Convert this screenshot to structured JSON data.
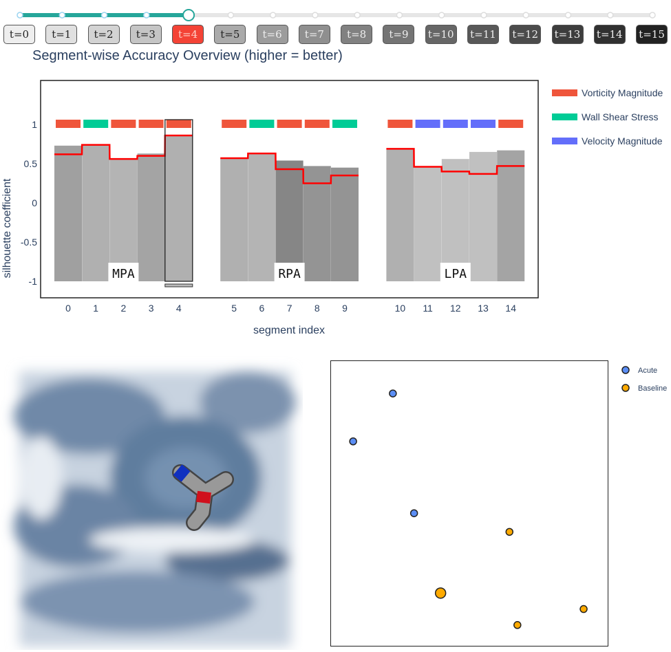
{
  "timeline": {
    "labels": [
      "t=0",
      "t=1",
      "t=2",
      "t=3",
      "t=4",
      "t=5",
      "t=6",
      "t=7",
      "t=8",
      "t=9",
      "t=10",
      "t=11",
      "t=12",
      "t=13",
      "t=14",
      "t=15"
    ],
    "selected_index": 4,
    "colors": {
      "active": "#f44336",
      "track_filled": "#26a69a"
    }
  },
  "title": "Segment-wise Accuracy Overview (higher = better)",
  "chart_data": [
    {
      "type": "bar",
      "xlabel": "segment index",
      "ylabel": "silhouette coefficient",
      "ylim": [
        -1.2,
        1.6
      ],
      "yticks": [
        "1",
        "0.5",
        "0",
        "-0.5",
        "-1"
      ],
      "ytick_values": [
        1,
        0.5,
        0,
        -0.5,
        -1
      ],
      "categories": [
        "0",
        "1",
        "2",
        "3",
        "4",
        "5",
        "6",
        "7",
        "8",
        "9",
        "10",
        "11",
        "12",
        "13",
        "14"
      ],
      "bar_values": [
        0.73,
        0.74,
        0.56,
        0.63,
        0.86,
        0.57,
        0.63,
        0.54,
        0.47,
        0.45,
        0.69,
        0.46,
        0.56,
        0.65,
        0.67
      ],
      "bar_base": -1,
      "bar_shades": [
        "#a0a0a0",
        "#b0b0b0",
        "#b4b4b4",
        "#a4a4a4",
        "#b0b0b0",
        "#b0b0b0",
        "#b4b4b4",
        "#868686",
        "#949494",
        "#949494",
        "#b0b0b0",
        "#c0c0c0",
        "#c0c0c0",
        "#c0c0c0",
        "#a4a4a4"
      ],
      "step_line_values": [
        0.62,
        0.74,
        0.56,
        0.6,
        0.86,
        0.57,
        0.63,
        0.43,
        0.25,
        0.35,
        0.69,
        0.46,
        0.4,
        0.37,
        0.47
      ],
      "feature_per_segment": [
        "Vorticity Magnitude",
        "Wall Shear Stress",
        "Vorticity Magnitude",
        "Vorticity Magnitude",
        "Vorticity Magnitude",
        "Vorticity Magnitude",
        "Wall Shear Stress",
        "Vorticity Magnitude",
        "Vorticity Magnitude",
        "Wall Shear Stress",
        "Vorticity Magnitude",
        "Velocity Magnitude",
        "Velocity Magnitude",
        "Velocity Magnitude",
        "Vorticity Magnitude"
      ],
      "groups": [
        {
          "label": "MPA",
          "segments": [
            0,
            4
          ]
        },
        {
          "label": "RPA",
          "segments": [
            5,
            9
          ]
        },
        {
          "label": "LPA",
          "segments": [
            10,
            14
          ]
        }
      ],
      "selected_segment": 4,
      "legend": [
        {
          "name": "Vorticity Magnitude",
          "color": "#ef553b"
        },
        {
          "name": "Wall Shear Stress",
          "color": "#00cc96"
        },
        {
          "name": "Velocity Magnitude",
          "color": "#636efa"
        }
      ],
      "legend_placement": "right"
    },
    {
      "type": "scatter",
      "series": [
        {
          "name": "Acute",
          "color": "#5b8ef5",
          "x": [
            21,
            6,
            29
          ],
          "y": [
            93,
            75,
            48
          ],
          "sizes": [
            1,
            1,
            1
          ]
        },
        {
          "name": "Baseline",
          "color": "#ffaa00",
          "x": [
            65,
            39,
            93,
            68
          ],
          "y": [
            41,
            18,
            12,
            6
          ],
          "sizes": [
            1,
            1.5,
            1,
            1
          ]
        }
      ],
      "xlim": [
        0,
        100
      ],
      "ylim": [
        0,
        100
      ],
      "legend_placement": "right"
    }
  ]
}
